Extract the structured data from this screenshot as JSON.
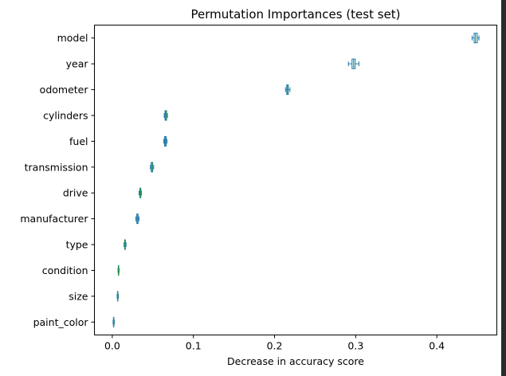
{
  "chart_data": {
    "type": "boxplot",
    "orientation": "horizontal",
    "title": "Permutation Importances (test set)",
    "xlabel": "Decrease in accuracy score",
    "ylabel": "",
    "xlim": [
      -0.022,
      0.474
    ],
    "xticks": [
      {
        "value": 0.0,
        "label": "0.0"
      },
      {
        "value": 0.1,
        "label": "0.1"
      },
      {
        "value": 0.2,
        "label": "0.2"
      },
      {
        "value": 0.3,
        "label": "0.3"
      },
      {
        "value": 0.4,
        "label": "0.4"
      }
    ],
    "grid": false,
    "box_color": "#1f77b4",
    "median_color": "#2ca02c",
    "categories": [
      "model",
      "year",
      "odometer",
      "cylinders",
      "fuel",
      "transmission",
      "drive",
      "manufacturer",
      "type",
      "condition",
      "size",
      "paint_color"
    ],
    "boxes": [
      {
        "label": "model",
        "whislo": 0.4435,
        "q1": 0.446,
        "med": 0.4478,
        "q3": 0.45,
        "whishi": 0.452
      },
      {
        "label": "year",
        "whislo": 0.291,
        "q1": 0.2955,
        "med": 0.2975,
        "q3": 0.2995,
        "whishi": 0.304
      },
      {
        "label": "odometer",
        "whislo": 0.2135,
        "q1": 0.215,
        "med": 0.216,
        "q3": 0.217,
        "whishi": 0.219
      },
      {
        "label": "cylinders",
        "whislo": 0.064,
        "q1": 0.065,
        "med": 0.066,
        "q3": 0.067,
        "whishi": 0.068
      },
      {
        "label": "fuel",
        "whislo": 0.0635,
        "q1": 0.0645,
        "med": 0.0655,
        "q3": 0.0665,
        "whishi": 0.0675
      },
      {
        "label": "transmission",
        "whislo": 0.047,
        "q1": 0.048,
        "med": 0.049,
        "q3": 0.0498,
        "whishi": 0.051
      },
      {
        "label": "drive",
        "whislo": 0.033,
        "q1": 0.034,
        "med": 0.0346,
        "q3": 0.0352,
        "whishi": 0.036
      },
      {
        "label": "manufacturer",
        "whislo": 0.029,
        "q1": 0.0302,
        "med": 0.031,
        "q3": 0.0318,
        "whishi": 0.033
      },
      {
        "label": "type",
        "whislo": 0.0145,
        "q1": 0.0152,
        "med": 0.0157,
        "q3": 0.0162,
        "whishi": 0.017
      },
      {
        "label": "condition",
        "whislo": 0.007,
        "q1": 0.0074,
        "med": 0.0077,
        "q3": 0.008,
        "whishi": 0.0085
      },
      {
        "label": "size",
        "whislo": 0.006,
        "q1": 0.0064,
        "med": 0.0067,
        "q3": 0.007,
        "whishi": 0.0075
      },
      {
        "label": "paint_color",
        "whislo": 0.001,
        "q1": 0.0014,
        "med": 0.0017,
        "q3": 0.002,
        "whishi": 0.0025
      }
    ]
  }
}
